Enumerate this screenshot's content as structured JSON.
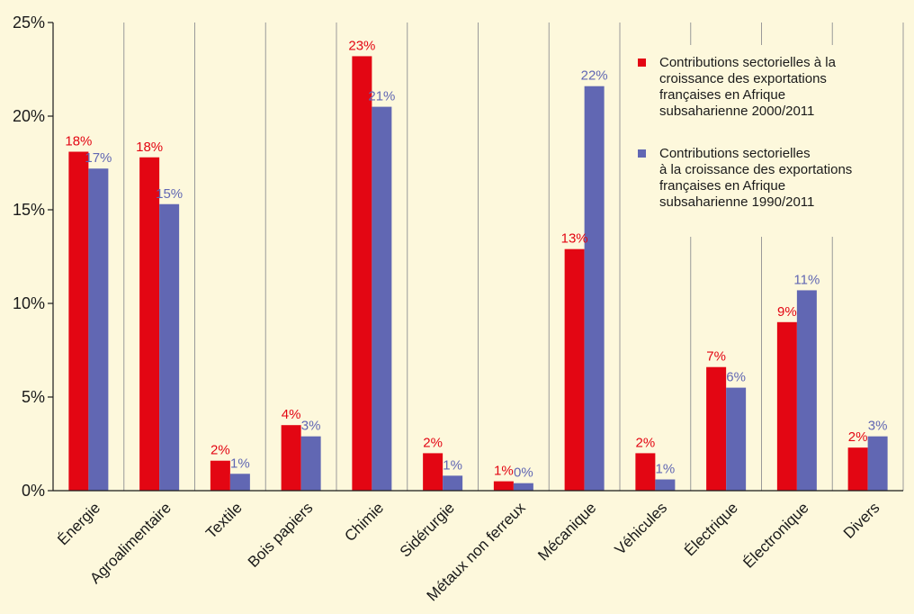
{
  "chart_data": {
    "type": "bar",
    "categories": [
      "Énergie",
      "Agroalimentaire",
      "Textile",
      "Bois papiers",
      "Chimie",
      "Sidérurgie",
      "Métaux non ferreux",
      "Mécanique",
      "Véhicules",
      "Électrique",
      "Électronique",
      "Divers"
    ],
    "series": [
      {
        "name": "Contributions sectorielles à la croissance des exportations françaises en Afrique subsaharienne 2000/2011",
        "legend_lines": [
          "Contributions sectorielles à la",
          "croissance des exportations",
          "françaises en Afrique",
          "subsaharienne 2000/2011"
        ],
        "color": "#e30613",
        "values": [
          18.1,
          17.8,
          1.6,
          3.5,
          23.2,
          2.0,
          0.5,
          12.9,
          2.0,
          6.6,
          9.0,
          2.3
        ],
        "labels": [
          "18%",
          "18%",
          "2%",
          "4%",
          "23%",
          "2%",
          "1%",
          "13%",
          "2%",
          "7%",
          "9%",
          "2%"
        ]
      },
      {
        "name": "Contributions sectorielles à la croissance des exportations françaises en Afrique subsaharienne 1990/2011",
        "legend_lines": [
          "Contributions sectorielles",
          "à la croissance des exportations",
          "françaises en Afrique",
          "subsaharienne 1990/2011"
        ],
        "color": "#6167b3",
        "values": [
          17.2,
          15.3,
          0.9,
          2.9,
          20.5,
          0.8,
          0.4,
          21.6,
          0.6,
          5.5,
          10.7,
          2.9
        ],
        "labels": [
          "17%",
          "15%",
          "1%",
          "3%",
          "21%",
          "1%",
          "0%",
          "22%",
          "1%",
          "6%",
          "11%",
          "3%"
        ]
      }
    ],
    "y_ticks": [
      "0%",
      "5%",
      "10%",
      "15%",
      "20%",
      "25%"
    ],
    "ylim": [
      0,
      25
    ],
    "grid": "vertical",
    "legend_position": "top-right",
    "title": "",
    "xlabel": "",
    "ylabel": ""
  },
  "colors": {
    "background": "#fdf8dc",
    "grid": "#9a9a9a",
    "axis": "#1a1a1a"
  }
}
